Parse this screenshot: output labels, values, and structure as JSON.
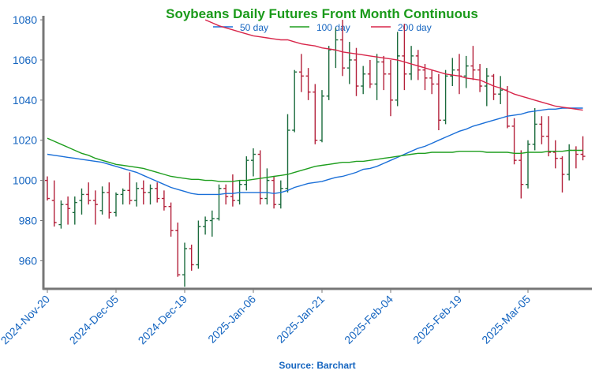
{
  "chart_data": {
    "type": "ohlc",
    "title": "Soybeans Daily Futures Front Month Continuous",
    "source": "Source: Barchart",
    "categories": [
      "2024-Nov-20",
      null,
      null,
      null,
      null,
      null,
      null,
      null,
      null,
      null,
      "2024-Dec-05",
      null,
      null,
      null,
      null,
      null,
      null,
      null,
      null,
      null,
      "2024-Dec-19",
      null,
      null,
      null,
      null,
      null,
      null,
      null,
      null,
      null,
      "2025-Jan-06",
      null,
      null,
      null,
      null,
      null,
      null,
      null,
      null,
      null,
      "2025-Jan-21",
      null,
      null,
      null,
      null,
      null,
      null,
      null,
      null,
      null,
      "2025-Feb-04",
      null,
      null,
      null,
      null,
      null,
      null,
      null,
      null,
      null,
      "2025-Feb-19",
      null,
      null,
      null,
      null,
      null,
      null,
      null,
      null,
      null,
      "2025-Mar-05",
      null,
      null,
      null,
      null,
      null,
      null,
      null,
      null
    ],
    "ohlc": {
      "up_color": "#1b6b3d",
      "down_color": "#b3203a",
      "open": [
        1000,
        990,
        978,
        988,
        984,
        990,
        993,
        990,
        985,
        994,
        984,
        993,
        995,
        990,
        996,
        994,
        996,
        991,
        987,
        975,
        953,
        966,
        958,
        977,
        980,
        981,
        996,
        992,
        990,
        998,
        1010,
        1013,
        991,
        1000,
        988,
        996,
        1025,
        1054,
        1052,
        1044,
        1020,
        1042,
        1065,
        1070,
        1056,
        1060,
        1047,
        1053,
        1048,
        1059,
        1053,
        1040,
        1062,
        1053,
        1062,
        1055,
        1051,
        1048,
        1030,
        1052,
        1055,
        1052,
        1057,
        1055,
        1047,
        1052,
        1043,
        1045,
        1027,
        1010,
        998,
        1018,
        1028,
        1022,
        1014,
        1011,
        1003,
        1015,
        1013
      ],
      "high": [
        1002,
        1000,
        990,
        992,
        992,
        996,
        999,
        995,
        997,
        999,
        994,
        996,
        1004,
        999,
        1000,
        998,
        999,
        995,
        989,
        979,
        969,
        968,
        980,
        982,
        985,
        998,
        998,
        1003,
        1000,
        1012,
        1016,
        1015,
        1006,
        1002,
        1000,
        1033,
        1055,
        1063,
        1056,
        1048,
        1045,
        1067,
        1076,
        1080,
        1069,
        1066,
        1057,
        1060,
        1063,
        1062,
        1060,
        1074,
        1078,
        1067,
        1065,
        1058,
        1055,
        1053,
        1055,
        1061,
        1063,
        1062,
        1067,
        1058,
        1056,
        1053,
        1052,
        1047,
        1031,
        1015,
        1020,
        1036,
        1032,
        1032,
        1020,
        1012,
        1018,
        1017,
        1022
      ],
      "low": [
        990,
        977,
        976,
        978,
        978,
        983,
        988,
        978,
        983,
        981,
        982,
        988,
        988,
        987,
        988,
        988,
        989,
        985,
        972,
        952,
        947,
        955,
        956,
        973,
        972,
        980,
        988,
        987,
        988,
        995,
        1002,
        988,
        988,
        986,
        986,
        994,
        1024,
        1044,
        1040,
        1018,
        1019,
        1040,
        1056,
        1052,
        1048,
        1042,
        1043,
        1046,
        1040,
        1045,
        1032,
        1037,
        1045,
        1050,
        1050,
        1045,
        1043,
        1025,
        1028,
        1047,
        1043,
        1046,
        1050,
        1044,
        1037,
        1040,
        1038,
        1026,
        1008,
        991,
        996,
        1015,
        1018,
        1012,
        1006,
        994,
        1000,
        1006,
        1010
      ],
      "close": [
        991,
        979,
        988,
        986,
        989,
        993,
        990,
        988,
        994,
        984,
        993,
        995,
        990,
        996,
        994,
        996,
        991,
        987,
        975,
        953,
        966,
        958,
        977,
        980,
        981,
        996,
        992,
        990,
        998,
        1010,
        1013,
        991,
        1000,
        988,
        996,
        1025,
        1054,
        1052,
        1044,
        1020,
        1042,
        1065,
        1070,
        1056,
        1060,
        1047,
        1053,
        1048,
        1059,
        1053,
        1040,
        1062,
        1053,
        1062,
        1055,
        1051,
        1048,
        1030,
        1052,
        1055,
        1052,
        1057,
        1055,
        1047,
        1052,
        1043,
        1045,
        1027,
        1010,
        998,
        1018,
        1028,
        1022,
        1014,
        1011,
        1003,
        1015,
        1013,
        1012
      ]
    },
    "moving_averages": [
      {
        "name": "50 day",
        "color": "#1a6fd8",
        "values": [
          1013,
          1012.5,
          1012,
          1011.5,
          1011,
          1010.5,
          1010,
          1009.5,
          1009,
          1008,
          1007,
          1006,
          1005,
          1004,
          1002.5,
          1001,
          999.5,
          998,
          996.5,
          995.5,
          994.5,
          993.5,
          993,
          993,
          993,
          993,
          993.5,
          993.5,
          994,
          994,
          994,
          994,
          994,
          993.5,
          994,
          995,
          996.5,
          997.5,
          998.5,
          999,
          999.5,
          1000.5,
          1001.5,
          1002,
          1003,
          1004,
          1005.5,
          1006,
          1007,
          1008.5,
          1010,
          1011.5,
          1013,
          1014.5,
          1016,
          1017,
          1018.5,
          1020,
          1021.5,
          1023,
          1024.5,
          1025.5,
          1027,
          1028,
          1029,
          1030,
          1031,
          1032,
          1032.5,
          1033,
          1034,
          1034.5,
          1035,
          1035.5,
          1035.5,
          1036,
          1036,
          1036,
          1036
        ]
      },
      {
        "name": "100 day",
        "color": "#1e9e1e",
        "values": [
          1021,
          1019.5,
          1018,
          1016.5,
          1015,
          1013.5,
          1012.5,
          1011,
          1010,
          1009,
          1008,
          1007.5,
          1007,
          1006.5,
          1006,
          1005,
          1004,
          1003,
          1002,
          1001.5,
          1001,
          1000.5,
          1000.5,
          1000,
          1000,
          999.5,
          999.5,
          999.5,
          1000,
          1000,
          1000.5,
          1001,
          1001.5,
          1002,
          1002.5,
          1003,
          1004,
          1005,
          1006,
          1007,
          1007.5,
          1008,
          1008.5,
          1009,
          1009,
          1009.5,
          1009.5,
          1010,
          1010.5,
          1011,
          1011.5,
          1012,
          1012.5,
          1013,
          1013.5,
          1013.5,
          1014,
          1014,
          1014,
          1014,
          1014.5,
          1014.5,
          1014.5,
          1014.5,
          1014,
          1014,
          1014,
          1014,
          1013.5,
          1013.5,
          1014,
          1014,
          1014,
          1014.5,
          1014.5,
          1014.5,
          1015,
          1015,
          1015
        ]
      },
      {
        "name": "200 day",
        "color": "#d8264a",
        "values": [
          null,
          null,
          null,
          null,
          null,
          null,
          null,
          null,
          null,
          null,
          null,
          null,
          null,
          null,
          null,
          null,
          null,
          null,
          null,
          null,
          null,
          null,
          null,
          1080,
          1078.5,
          1077,
          1076,
          1075,
          1074,
          1073,
          1072,
          1071.5,
          1071,
          1070.5,
          1070,
          1070,
          1069,
          1068,
          1067.5,
          1067,
          1066,
          1065.5,
          1065,
          1064,
          1063.5,
          1063,
          1062.5,
          1062,
          1061.5,
          1061,
          1060.5,
          1060,
          1059,
          1058,
          1057,
          1056,
          1055,
          1054,
          1053,
          1052.5,
          1052,
          1051,
          1050.5,
          1050,
          1048.5,
          1047,
          1046,
          1044.5,
          1043,
          1042,
          1041,
          1040,
          1039,
          1038,
          1037,
          1036.5,
          1036,
          1035.5,
          1035
        ]
      }
    ],
    "ylim": [
      946,
      1082
    ],
    "yticks": [
      960,
      980,
      1000,
      1020,
      1040,
      1060,
      1080
    ]
  }
}
